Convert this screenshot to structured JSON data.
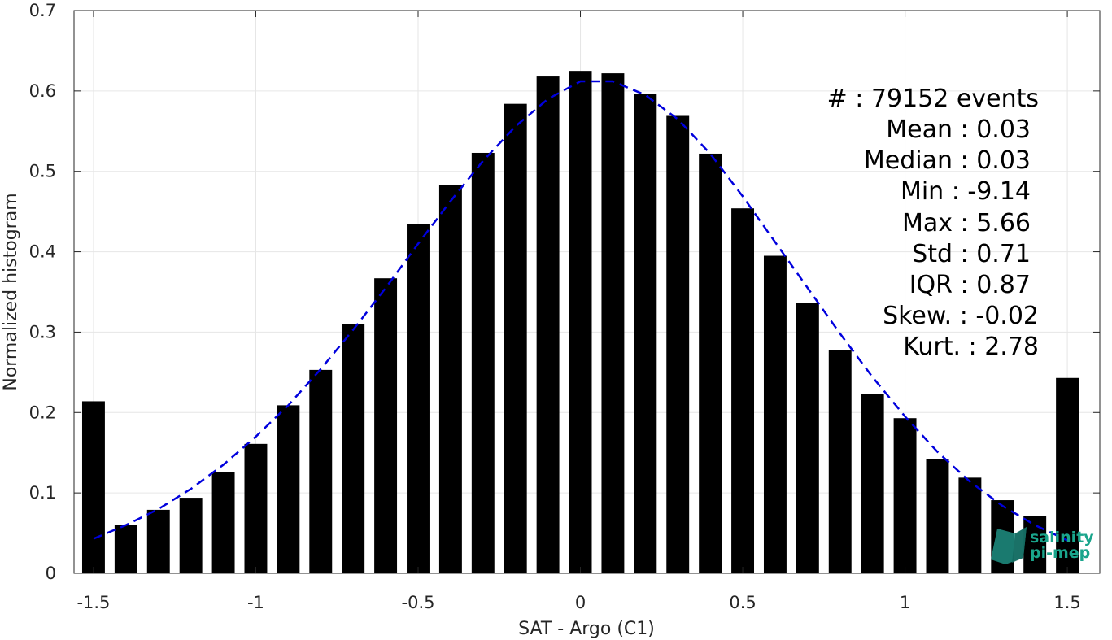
{
  "chart_data": {
    "type": "bar",
    "xlabel": "SAT - Argo (C1)",
    "ylabel": "Normalized histogram",
    "xlim": [
      -1.56,
      1.6
    ],
    "ylim": [
      0,
      0.7
    ],
    "xticks": [
      -1.5,
      -1,
      -0.5,
      0,
      0.5,
      1,
      1.5
    ],
    "xtick_labels": [
      "-1.5",
      "-1",
      "-0.5",
      "0",
      "0.5",
      "1",
      "1.5"
    ],
    "yticks": [
      0,
      0.1,
      0.2,
      0.3,
      0.4,
      0.5,
      0.6,
      0.7
    ],
    "ytick_labels": [
      "0",
      "0.1",
      "0.2",
      "0.3",
      "0.4",
      "0.5",
      "0.6",
      "0.7"
    ],
    "grid": true,
    "bar_color": "#000000",
    "bar_width": 0.07,
    "bars": {
      "x": [
        -1.5,
        -1.4,
        -1.3,
        -1.2,
        -1.1,
        -1.0,
        -0.9,
        -0.8,
        -0.7,
        -0.6,
        -0.5,
        -0.4,
        -0.3,
        -0.2,
        -0.1,
        0.0,
        0.1,
        0.2,
        0.3,
        0.4,
        0.5,
        0.6,
        0.7,
        0.8,
        0.9,
        1.0,
        1.1,
        1.2,
        1.3,
        1.4,
        1.5
      ],
      "values": [
        0.214,
        0.06,
        0.079,
        0.094,
        0.126,
        0.161,
        0.209,
        0.253,
        0.31,
        0.367,
        0.434,
        0.483,
        0.523,
        0.584,
        0.618,
        0.625,
        0.622,
        0.596,
        0.569,
        0.522,
        0.454,
        0.395,
        0.336,
        0.278,
        0.223,
        0.193,
        0.142,
        0.119,
        0.091,
        0.071,
        0.243
      ]
    },
    "fit_curve": {
      "style": "dashed",
      "color": "#0000dd",
      "x": [
        -1.5,
        -1.4,
        -1.3,
        -1.2,
        -1.1,
        -1.0,
        -0.9,
        -0.8,
        -0.7,
        -0.6,
        -0.5,
        -0.4,
        -0.3,
        -0.2,
        -0.1,
        0.0,
        0.1,
        0.2,
        0.3,
        0.4,
        0.5,
        0.6,
        0.7,
        0.8,
        0.9,
        1.0,
        1.1,
        1.2,
        1.3,
        1.4,
        1.5
      ],
      "y": [
        0.043,
        0.06,
        0.08,
        0.105,
        0.135,
        0.17,
        0.209,
        0.254,
        0.303,
        0.355,
        0.41,
        0.463,
        0.513,
        0.556,
        0.59,
        0.612,
        0.612,
        0.595,
        0.565,
        0.522,
        0.469,
        0.412,
        0.355,
        0.298,
        0.244,
        0.195,
        0.151,
        0.114,
        0.084,
        0.06,
        0.041
      ]
    },
    "annotations": [
      "#  : 79152 events",
      "Mean : 0.03",
      "Median : 0.03",
      "Min : -9.14",
      "Max : 5.66",
      "Std : 0.71",
      "IQR : 0.87",
      "Skew. : -0.02",
      "Kurt. : 2.78"
    ]
  },
  "logo": {
    "line1": "salinity",
    "line2": "pi-mep",
    "color": "#1aa58c"
  }
}
